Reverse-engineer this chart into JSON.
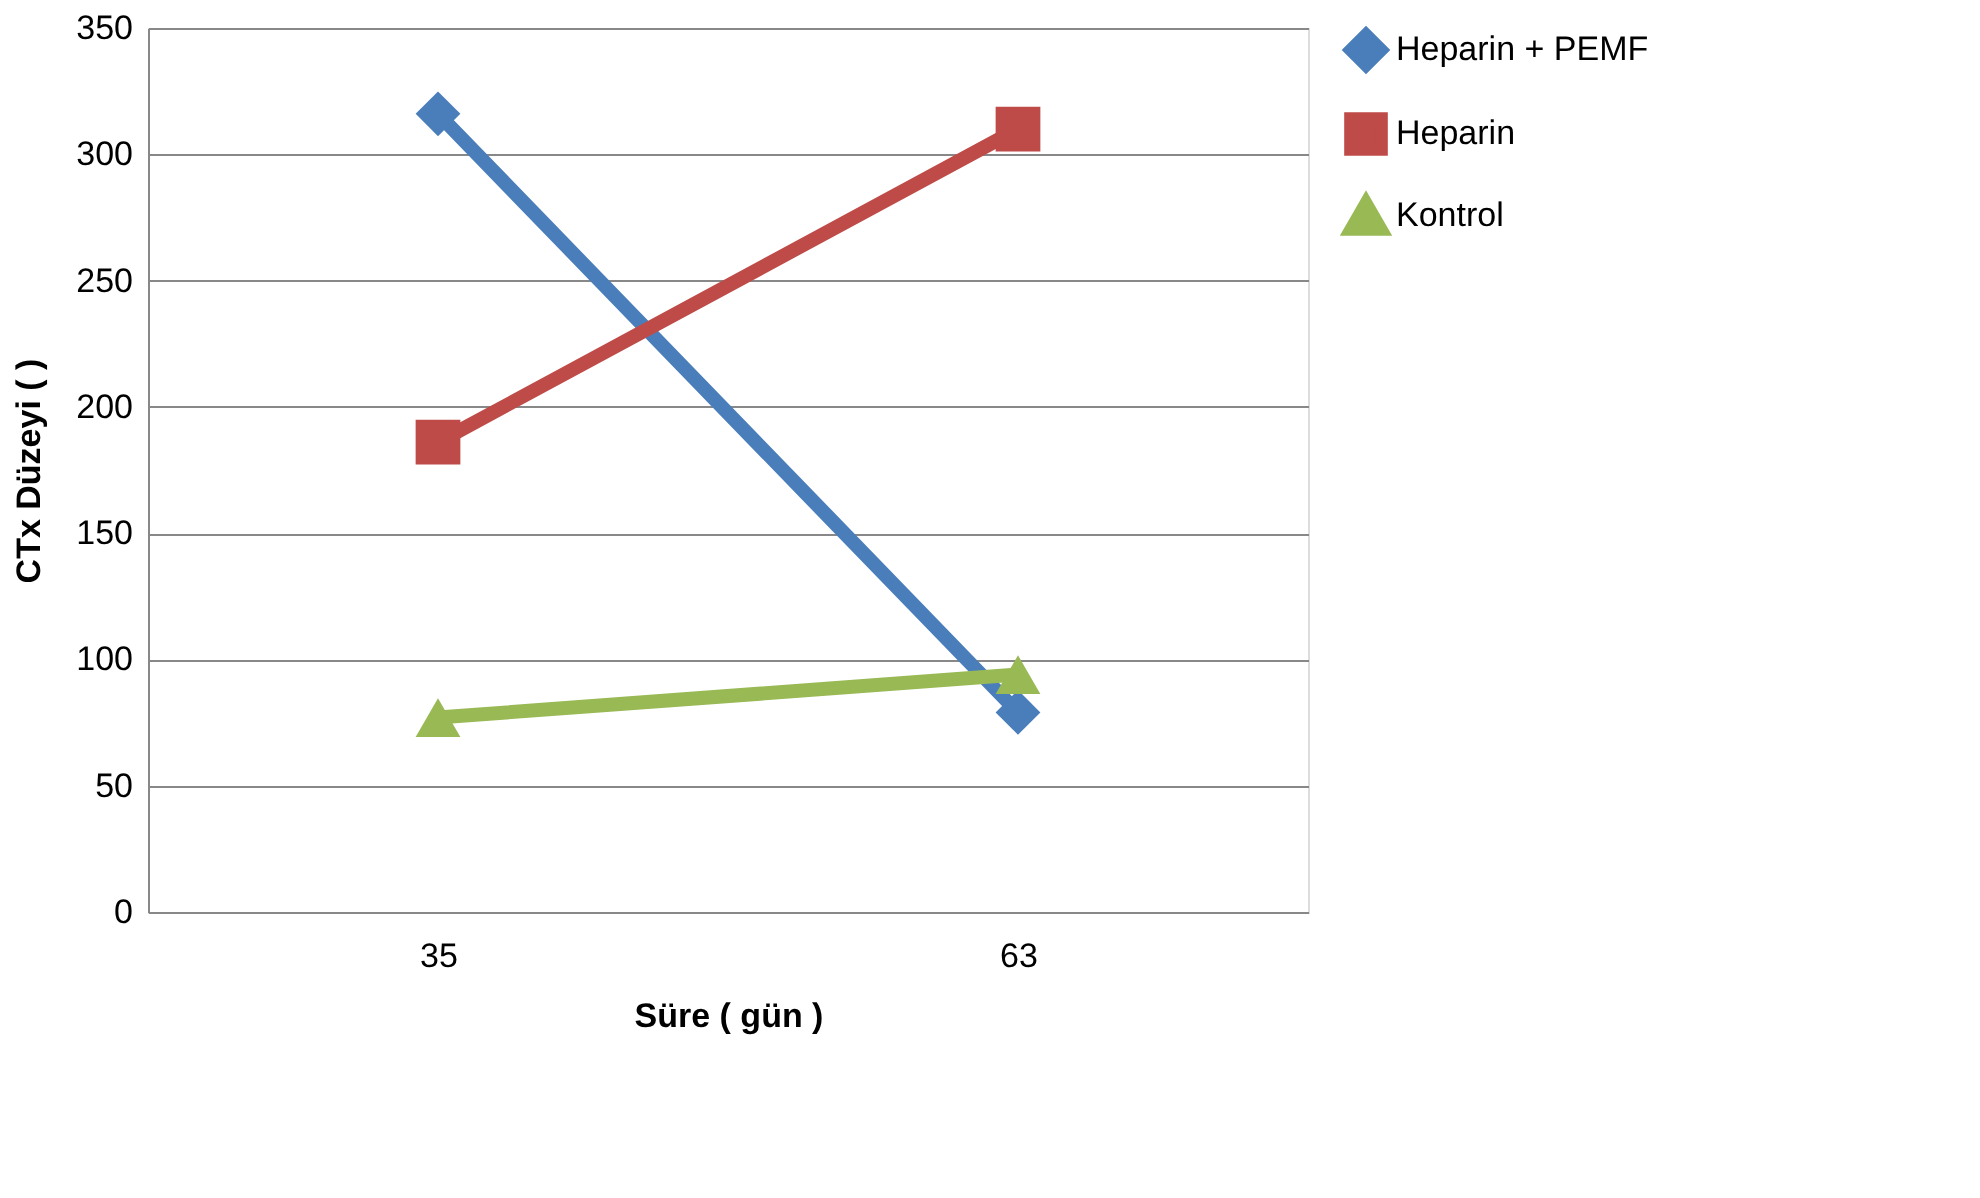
{
  "chart_data": {
    "type": "line",
    "xlabel": "Süre ( gün )",
    "ylabel": "CTx Düzeyi (  )",
    "categories": [
      "35",
      "63"
    ],
    "series": [
      {
        "name": "Heparin + PEMF",
        "color": "#4a7ebb",
        "marker": "diamond",
        "values": [
          316,
          79
        ]
      },
      {
        "name": "Heparin",
        "color": "#be4b48",
        "marker": "square",
        "values": [
          186,
          310
        ]
      },
      {
        "name": "Kontrol",
        "color": "#98b954",
        "marker": "triangle",
        "values": [
          77,
          94
        ]
      }
    ],
    "ylim": [
      0,
      350
    ],
    "yticks": [
      0,
      50,
      100,
      150,
      200,
      250,
      300,
      350
    ],
    "grid": "y",
    "legend": "right",
    "line_style": "solid"
  }
}
